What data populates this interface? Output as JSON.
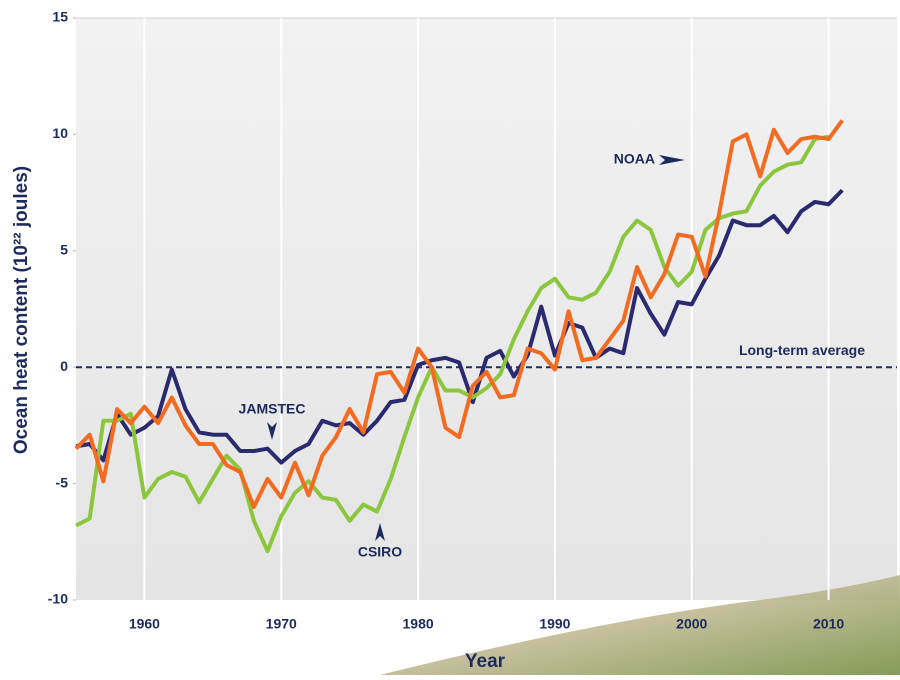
{
  "chart_data": {
    "type": "line",
    "x_label": "Year",
    "y_label": "Ocean heat content (10²² joules)",
    "x": [
      1955,
      1956,
      1957,
      1958,
      1959,
      1960,
      1961,
      1962,
      1963,
      1964,
      1965,
      1966,
      1967,
      1968,
      1969,
      1970,
      1971,
      1972,
      1973,
      1974,
      1975,
      1976,
      1977,
      1978,
      1979,
      1980,
      1981,
      1982,
      1983,
      1984,
      1985,
      1986,
      1987,
      1988,
      1989,
      1990,
      1991,
      1992,
      1993,
      1994,
      1995,
      1996,
      1997,
      1998,
      1999,
      2000,
      2001,
      2002,
      2003,
      2004,
      2005,
      2006,
      2007,
      2008,
      2009,
      2010,
      2011
    ],
    "series": [
      {
        "name": "JAMSTEC",
        "color": "#2b2a6e",
        "values": [
          -3.4,
          -3.3,
          -4.0,
          -2.0,
          -2.9,
          -2.6,
          -2.1,
          -0.1,
          -1.8,
          -2.8,
          -2.9,
          -2.9,
          -3.6,
          -3.6,
          -3.5,
          -4.1,
          -3.6,
          -3.3,
          -2.3,
          -2.5,
          -2.4,
          -2.9,
          -2.3,
          -1.5,
          -1.4,
          0.1,
          0.3,
          0.4,
          0.2,
          -1.5,
          0.4,
          0.7,
          -0.4,
          0.5,
          2.6,
          0.5,
          1.9,
          1.7,
          0.4,
          0.8,
          0.6,
          3.4,
          2.3,
          1.4,
          2.8,
          2.7,
          3.8,
          4.8,
          6.3,
          6.1,
          6.1,
          6.5,
          5.8,
          6.7,
          7.1,
          7.0,
          7.6
        ]
      },
      {
        "name": "CSIRO",
        "color": "#8cc63f",
        "values": [
          -6.8,
          -6.5,
          -2.3,
          -2.3,
          -2.0,
          -5.6,
          -4.8,
          -4.5,
          -4.7,
          -5.8,
          -4.8,
          -3.8,
          -4.4,
          -6.6,
          -7.9,
          -6.4,
          -5.4,
          -4.9,
          -5.6,
          -5.7,
          -6.6,
          -5.9,
          -6.2,
          -4.8,
          -3.0,
          -1.3,
          0.0,
          -1.0,
          -1.0,
          -1.3,
          -0.9,
          -0.3,
          1.2,
          2.4,
          3.4,
          3.8,
          3.0,
          2.9,
          3.2,
          4.1,
          5.6,
          6.3,
          5.9,
          4.3,
          3.5,
          4.1,
          5.9,
          6.4,
          6.6,
          6.7,
          7.8,
          8.4,
          8.7,
          8.8,
          9.8,
          9.9,
          null
        ]
      },
      {
        "name": "NOAA",
        "color": "#f26b21",
        "values": [
          -3.5,
          -2.9,
          -4.9,
          -1.8,
          -2.4,
          -1.7,
          -2.4,
          -1.3,
          -2.5,
          -3.3,
          -3.3,
          -4.2,
          -4.5,
          -6.0,
          -4.8,
          -5.6,
          -4.1,
          -5.5,
          -3.8,
          -3.0,
          -1.8,
          -2.8,
          -0.3,
          -0.2,
          -1.1,
          0.8,
          0.0,
          -2.6,
          -3.0,
          -0.8,
          -0.2,
          -1.3,
          -1.2,
          0.8,
          0.6,
          -0.1,
          2.4,
          0.3,
          0.4,
          1.2,
          2.0,
          4.3,
          3.0,
          4.0,
          5.7,
          5.6,
          3.9,
          6.6,
          9.7,
          10.0,
          8.2,
          10.2,
          9.2,
          9.8,
          9.9,
          9.8,
          10.6
        ]
      }
    ],
    "reference_line": {
      "value": 0,
      "label": "Long-term average",
      "color": "#1f2a5c"
    },
    "xlim": [
      1955,
      2015
    ],
    "ylim": [
      -10,
      15
    ],
    "xticks": [
      1960,
      1970,
      1980,
      1990,
      2000,
      2010
    ],
    "yticks": [
      -10,
      -5,
      0,
      5,
      10,
      15
    ],
    "grid": "x"
  }
}
